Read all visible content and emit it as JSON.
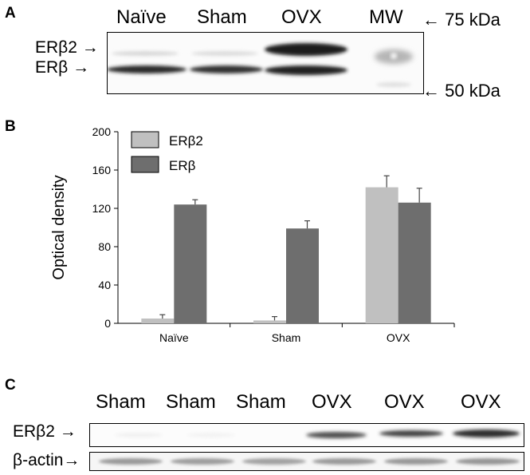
{
  "panel_a": {
    "letter": "A",
    "lanes": [
      "Naïve",
      "Sham",
      "OVX",
      "MW"
    ],
    "bands": [
      "ERβ2 →",
      "ERβ →"
    ],
    "markers": [
      "← 75 kDa",
      "← 50 kDa"
    ]
  },
  "panel_b": {
    "letter": "B"
  },
  "panel_c": {
    "letter": "C",
    "lanes": [
      "Sham",
      "Sham",
      "Sham",
      "OVX",
      "OVX",
      "OVX"
    ],
    "rows": [
      "ERβ2 →",
      "β-actin→"
    ]
  },
  "chart_data": {
    "type": "bar",
    "categories": [
      "Naïve",
      "Sham",
      "OVX"
    ],
    "series": [
      {
        "name": "ERβ2",
        "values": [
          5,
          3,
          142
        ],
        "errors": [
          4,
          4,
          12
        ],
        "color": "#c0c0c0"
      },
      {
        "name": "ERβ",
        "values": [
          124,
          99,
          126
        ],
        "errors": [
          5,
          8,
          15
        ],
        "color": "#6e6e6e"
      }
    ],
    "ylabel": "Optical density",
    "ylim": [
      0,
      200
    ],
    "yticks": [
      0,
      40,
      80,
      120,
      160,
      200
    ],
    "legend_position": "top-left",
    "grid": false
  }
}
